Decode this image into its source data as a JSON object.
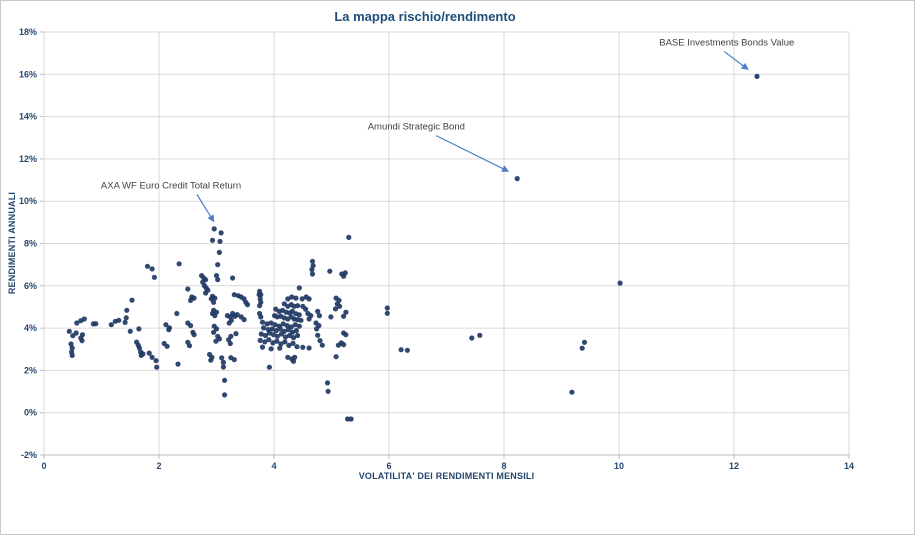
{
  "chart_data": {
    "type": "scatter",
    "title": "La mappa rischio/rendimento",
    "xlabel": "VOLATILITA' DEI RENDIMENTI MENSILI",
    "ylabel": "RENDIMENTI ANNUALI",
    "xlim": [
      0,
      14
    ],
    "ylim": [
      -2,
      18
    ],
    "grid": true,
    "legend_position": "none",
    "x_ticks": [
      {
        "v": 0,
        "label": "0"
      },
      {
        "v": 2,
        "label": "2"
      },
      {
        "v": 4,
        "label": "4"
      },
      {
        "v": 6,
        "label": "6"
      },
      {
        "v": 8,
        "label": "8"
      },
      {
        "v": 10,
        "label": "10"
      },
      {
        "v": 12,
        "label": "12"
      },
      {
        "v": 14,
        "label": "14"
      }
    ],
    "y_ticks": [
      {
        "v": 18,
        "label": "18%"
      },
      {
        "v": 16,
        "label": "16%"
      },
      {
        "v": 14,
        "label": "14%"
      },
      {
        "v": 12,
        "label": "12%"
      },
      {
        "v": 10,
        "label": "10%"
      },
      {
        "v": 8,
        "label": "8%"
      },
      {
        "v": 6,
        "label": "6%"
      },
      {
        "v": 4,
        "label": "4%"
      },
      {
        "v": 2,
        "label": "2%"
      },
      {
        "v": 0,
        "label": "0%"
      },
      {
        "v": -2,
        "label": "-2%"
      }
    ],
    "colors": {
      "point": "#1F3864",
      "grid": "#D9D9D9",
      "axis": "#BFBFBF",
      "title": "#1F4E79",
      "tick_label": "#24466E",
      "annotation_text": "#404040",
      "arrow": "#4E7DC6"
    },
    "annotations": [
      {
        "label": "AXA WF Euro Credit Total Return",
        "text_x": 0.99,
        "text_y": 10.61,
        "arrow": {
          "x1": 2.66,
          "y1": 10.32,
          "x2": 2.95,
          "y2": 9.05
        },
        "point_x": 2.96,
        "point_y": 8.69
      },
      {
        "label": "Amundi Strategic Bond",
        "text_x": 5.63,
        "text_y": 13.4,
        "arrow": {
          "x1": 6.82,
          "y1": 13.1,
          "x2": 8.07,
          "y2": 11.42
        },
        "point_x": 8.23,
        "point_y": 11.07
      },
      {
        "label": "BASE Investments Bonds Value",
        "text_x": 10.7,
        "text_y": 17.37,
        "arrow": {
          "x1": 11.83,
          "y1": 17.08,
          "x2": 12.24,
          "y2": 16.24
        },
        "point_x": 12.4,
        "point_y": 15.9
      }
    ],
    "points": [
      [
        0.44,
        3.85
      ],
      [
        0.5,
        3.64
      ],
      [
        0.56,
        3.77
      ],
      [
        0.47,
        3.25
      ],
      [
        0.49,
        3.06
      ],
      [
        0.48,
        2.87
      ],
      [
        0.49,
        2.71
      ],
      [
        0.57,
        4.24
      ],
      [
        0.64,
        4.35
      ],
      [
        0.67,
        3.69
      ],
      [
        0.64,
        3.53
      ],
      [
        0.66,
        3.41
      ],
      [
        0.7,
        4.43
      ],
      [
        0.86,
        4.2
      ],
      [
        0.9,
        4.21
      ],
      [
        1.17,
        4.16
      ],
      [
        1.24,
        4.32
      ],
      [
        1.3,
        4.37
      ],
      [
        1.41,
        4.27
      ],
      [
        1.43,
        4.48
      ],
      [
        1.44,
        4.84
      ],
      [
        1.53,
        5.32
      ],
      [
        1.5,
        3.85
      ],
      [
        1.65,
        3.96
      ],
      [
        1.8,
        6.92
      ],
      [
        1.88,
        6.8
      ],
      [
        1.92,
        6.4
      ],
      [
        1.61,
        3.34
      ],
      [
        1.64,
        3.19
      ],
      [
        1.66,
        3.06
      ],
      [
        1.68,
        2.87
      ],
      [
        1.69,
        2.71
      ],
      [
        1.72,
        2.78
      ],
      [
        1.83,
        2.82
      ],
      [
        1.88,
        2.62
      ],
      [
        1.95,
        2.46
      ],
      [
        1.96,
        2.15
      ],
      [
        2.09,
        3.27
      ],
      [
        2.14,
        3.14
      ],
      [
        2.12,
        4.16
      ],
      [
        2.18,
        4.01
      ],
      [
        2.17,
        3.93
      ],
      [
        2.31,
        4.69
      ],
      [
        2.33,
        2.3
      ],
      [
        2.35,
        7.04
      ],
      [
        2.5,
        5.85
      ],
      [
        2.57,
        5.47
      ],
      [
        2.61,
        5.42
      ],
      [
        2.55,
        5.31
      ],
      [
        2.5,
        4.24
      ],
      [
        2.55,
        4.12
      ],
      [
        2.59,
        3.8
      ],
      [
        2.61,
        3.69
      ],
      [
        2.5,
        3.33
      ],
      [
        2.53,
        3.17
      ],
      [
        2.74,
        6.48
      ],
      [
        2.78,
        6.37
      ],
      [
        2.81,
        6.29
      ],
      [
        2.76,
        6.17
      ],
      [
        2.79,
        6.01
      ],
      [
        2.82,
        5.9
      ],
      [
        2.85,
        5.79
      ],
      [
        2.81,
        5.66
      ],
      [
        3.0,
        6.48
      ],
      [
        3.02,
        6.29
      ],
      [
        3.28,
        6.37
      ],
      [
        2.93,
        5.5
      ],
      [
        2.97,
        5.42
      ],
      [
        2.91,
        5.38
      ],
      [
        2.95,
        5.22
      ],
      [
        2.96,
        8.69
      ],
      [
        3.08,
        8.5
      ],
      [
        2.93,
        8.15
      ],
      [
        3.06,
        8.1
      ],
      [
        3.05,
        7.58
      ],
      [
        3.02,
        7.0
      ],
      [
        2.95,
        4.84
      ],
      [
        3.0,
        4.75
      ],
      [
        2.93,
        4.69
      ],
      [
        2.97,
        4.59
      ],
      [
        2.96,
        4.09
      ],
      [
        3.0,
        3.96
      ],
      [
        2.95,
        3.8
      ],
      [
        3.02,
        3.61
      ],
      [
        2.99,
        3.38
      ],
      [
        3.05,
        3.49
      ],
      [
        2.88,
        2.75
      ],
      [
        2.92,
        2.62
      ],
      [
        2.9,
        2.48
      ],
      [
        3.09,
        2.59
      ],
      [
        3.12,
        2.38
      ],
      [
        3.12,
        2.16
      ],
      [
        3.25,
        2.6
      ],
      [
        3.31,
        2.51
      ],
      [
        3.14,
        1.53
      ],
      [
        3.14,
        0.84
      ],
      [
        3.19,
        4.59
      ],
      [
        3.24,
        4.53
      ],
      [
        3.28,
        4.69
      ],
      [
        3.32,
        4.56
      ],
      [
        3.36,
        4.64
      ],
      [
        3.26,
        4.37
      ],
      [
        3.22,
        4.24
      ],
      [
        3.43,
        4.53
      ],
      [
        3.48,
        4.4
      ],
      [
        3.25,
        3.61
      ],
      [
        3.21,
        3.45
      ],
      [
        3.24,
        3.27
      ],
      [
        3.34,
        3.74
      ],
      [
        3.31,
        5.58
      ],
      [
        3.38,
        5.53
      ],
      [
        3.43,
        5.47
      ],
      [
        3.48,
        5.38
      ],
      [
        3.51,
        5.22
      ],
      [
        3.54,
        5.11
      ],
      [
        4.44,
        5.9
      ],
      [
        4.24,
        5.38
      ],
      [
        4.31,
        5.47
      ],
      [
        4.38,
        5.42
      ],
      [
        4.49,
        5.38
      ],
      [
        4.56,
        5.47
      ],
      [
        4.61,
        5.38
      ],
      [
        4.18,
        5.15
      ],
      [
        4.24,
        5.03
      ],
      [
        4.3,
        5.11
      ],
      [
        4.35,
        5.03
      ],
      [
        4.41,
        5.06
      ],
      [
        4.5,
        5.03
      ],
      [
        4.55,
        4.9
      ],
      [
        4.03,
        4.9
      ],
      [
        4.09,
        4.79
      ],
      [
        4.15,
        4.84
      ],
      [
        4.21,
        4.75
      ],
      [
        4.27,
        4.72
      ],
      [
        4.32,
        4.79
      ],
      [
        4.38,
        4.68
      ],
      [
        4.44,
        4.63
      ],
      [
        4.01,
        4.59
      ],
      [
        4.06,
        4.53
      ],
      [
        4.12,
        4.56
      ],
      [
        4.18,
        4.48
      ],
      [
        4.24,
        4.43
      ],
      [
        4.3,
        4.53
      ],
      [
        4.35,
        4.43
      ],
      [
        4.41,
        4.4
      ],
      [
        4.47,
        4.37
      ],
      [
        4.59,
        4.69
      ],
      [
        4.64,
        4.59
      ],
      [
        4.61,
        4.43
      ],
      [
        4.76,
        4.79
      ],
      [
        4.79,
        4.59
      ],
      [
        4.99,
        4.53
      ],
      [
        3.74,
        5.58
      ],
      [
        3.75,
        5.74
      ],
      [
        3.77,
        5.58
      ],
      [
        3.76,
        5.38
      ],
      [
        3.77,
        5.22
      ],
      [
        3.75,
        5.06
      ],
      [
        3.75,
        4.69
      ],
      [
        3.77,
        4.53
      ],
      [
        3.8,
        4.28
      ],
      [
        3.88,
        4.2
      ],
      [
        3.95,
        4.24
      ],
      [
        4.02,
        4.16
      ],
      [
        4.09,
        4.09
      ],
      [
        4.16,
        4.2
      ],
      [
        4.23,
        4.12
      ],
      [
        4.3,
        4.05
      ],
      [
        4.37,
        4.16
      ],
      [
        4.44,
        4.09
      ],
      [
        4.73,
        4.24
      ],
      [
        4.78,
        4.12
      ],
      [
        3.82,
        4.01
      ],
      [
        3.9,
        3.93
      ],
      [
        3.97,
        3.96
      ],
      [
        4.04,
        3.88
      ],
      [
        4.11,
        3.96
      ],
      [
        4.18,
        3.85
      ],
      [
        4.25,
        3.93
      ],
      [
        4.32,
        3.8
      ],
      [
        4.39,
        3.88
      ],
      [
        3.78,
        3.72
      ],
      [
        3.85,
        3.65
      ],
      [
        3.92,
        3.77
      ],
      [
        3.99,
        3.69
      ],
      [
        4.06,
        3.61
      ],
      [
        4.13,
        3.72
      ],
      [
        4.2,
        3.58
      ],
      [
        4.27,
        3.65
      ],
      [
        4.34,
        3.55
      ],
      [
        4.41,
        3.65
      ],
      [
        4.74,
        3.96
      ],
      [
        3.76,
        3.42
      ],
      [
        3.84,
        3.35
      ],
      [
        3.91,
        3.45
      ],
      [
        3.98,
        3.3
      ],
      [
        4.05,
        3.38
      ],
      [
        4.12,
        3.25
      ],
      [
        4.19,
        3.35
      ],
      [
        4.26,
        3.18
      ],
      [
        4.33,
        3.28
      ],
      [
        4.4,
        3.12
      ],
      [
        4.5,
        3.09
      ],
      [
        4.61,
        3.06
      ],
      [
        3.8,
        3.1
      ],
      [
        3.95,
        3.02
      ],
      [
        4.1,
        3.05
      ],
      [
        4.76,
        3.66
      ],
      [
        4.8,
        3.41
      ],
      [
        4.84,
        3.19
      ],
      [
        5.08,
        5.42
      ],
      [
        5.13,
        5.31
      ],
      [
        5.1,
        5.15
      ],
      [
        5.14,
        5.03
      ],
      [
        5.07,
        4.91
      ],
      [
        5.25,
        4.75
      ],
      [
        5.21,
        4.56
      ],
      [
        5.21,
        3.77
      ],
      [
        5.25,
        3.69
      ],
      [
        5.17,
        3.3
      ],
      [
        5.21,
        3.22
      ],
      [
        5.12,
        3.19
      ],
      [
        5.08,
        2.65
      ],
      [
        4.67,
        7.16
      ],
      [
        4.68,
        6.95
      ],
      [
        4.66,
        6.77
      ],
      [
        4.67,
        6.56
      ],
      [
        4.97,
        6.69
      ],
      [
        5.18,
        6.56
      ],
      [
        5.24,
        6.61
      ],
      [
        5.21,
        6.45
      ],
      [
        5.3,
        8.29
      ],
      [
        3.92,
        2.15
      ],
      [
        4.24,
        2.62
      ],
      [
        4.31,
        2.54
      ],
      [
        4.36,
        2.62
      ],
      [
        4.34,
        2.43
      ],
      [
        4.93,
        1.41
      ],
      [
        4.94,
        1.01
      ],
      [
        5.28,
        -0.3
      ],
      [
        5.34,
        -0.3
      ],
      [
        5.97,
        4.95
      ],
      [
        5.97,
        4.7
      ],
      [
        6.21,
        2.98
      ],
      [
        6.32,
        2.95
      ],
      [
        7.44,
        3.53
      ],
      [
        7.58,
        3.66
      ],
      [
        9.4,
        3.33
      ],
      [
        9.36,
        3.05
      ],
      [
        9.18,
        0.97
      ],
      [
        10.02,
        6.13
      ],
      [
        8.23,
        11.07
      ],
      [
        12.4,
        15.9
      ]
    ]
  }
}
